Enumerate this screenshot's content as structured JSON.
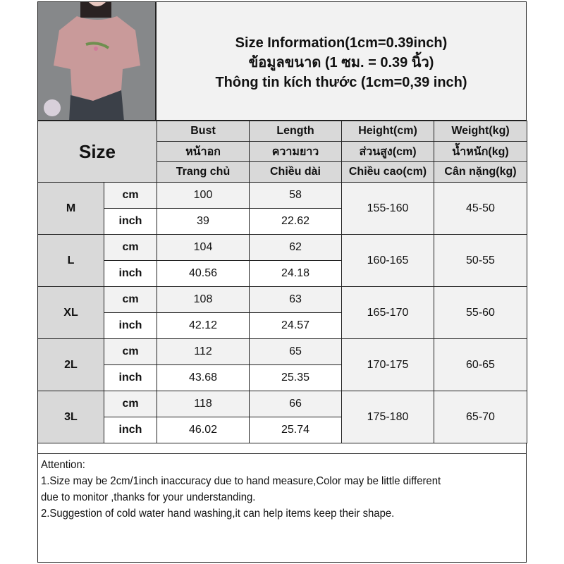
{
  "title": {
    "line1": "Size Information(1cm=0.39inch)",
    "line2": "ข้อมูลขนาด (1 ซม. = 0.39 นิ้ว)",
    "line3": "Thông tin kích thước (1cm=0,39 inch)"
  },
  "photo": {
    "subject": "pink short-sleeve linen top with embroidery"
  },
  "colors": {
    "header_bg": "#d9d9d9",
    "light_row": "#f2f2f2",
    "border": "#222222"
  },
  "table": {
    "size_label": "Size",
    "columns": [
      {
        "en": "Bust",
        "th": "หน้าอก",
        "vi": "Trang chủ"
      },
      {
        "en": "Length",
        "th": "ความยาว",
        "vi": "Chiều dài"
      },
      {
        "en": "Height(cm)",
        "th": "ส่วนสูง(cm)",
        "vi": "Chiều cao(cm)"
      },
      {
        "en": "Weight(kg)",
        "th": "น้ำหนัก(kg)",
        "vi": "Cân nặng(kg)"
      }
    ],
    "unit_cm": "cm",
    "unit_inch": "inch",
    "rows": [
      {
        "size": "M",
        "bust_cm": "100",
        "length_cm": "58",
        "bust_in": "39",
        "length_in": "22.62",
        "height": "155-160",
        "weight": "45-50"
      },
      {
        "size": "L",
        "bust_cm": "104",
        "length_cm": "62",
        "bust_in": "40.56",
        "length_in": "24.18",
        "height": "160-165",
        "weight": "50-55"
      },
      {
        "size": "XL",
        "bust_cm": "108",
        "length_cm": "63",
        "bust_in": "42.12",
        "length_in": "24.57",
        "height": "165-170",
        "weight": "55-60"
      },
      {
        "size": "2L",
        "bust_cm": "112",
        "length_cm": "65",
        "bust_in": "43.68",
        "length_in": "25.35",
        "height": "170-175",
        "weight": "60-65"
      },
      {
        "size": "3L",
        "bust_cm": "118",
        "length_cm": "66",
        "bust_in": "46.02",
        "length_in": "25.74",
        "height": "175-180",
        "weight": "65-70"
      }
    ]
  },
  "attention": {
    "heading": "Attention:",
    "line1": "1.Size may be 2cm/1inch inaccuracy due to hand measure,Color may be little different",
    "line2": "due to monitor ,thanks for your understanding.",
    "line3": "2.Suggestion of cold water hand washing,it can help items keep their shape."
  }
}
